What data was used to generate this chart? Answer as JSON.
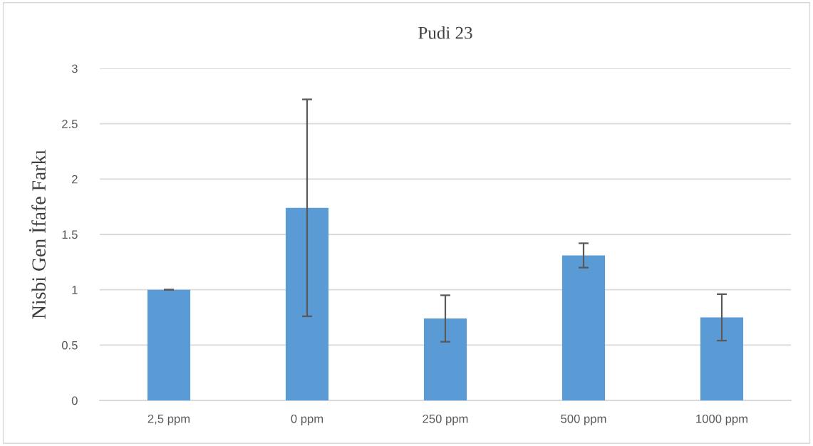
{
  "chart_data": {
    "type": "bar",
    "title": "Pudi 23",
    "ylabel": "Nisbi Gen İfafe Farkı",
    "categories": [
      "2,5 ppm",
      "0 ppm",
      "250 ppm",
      "500 ppm",
      "1000 ppm"
    ],
    "values": [
      1.0,
      1.74,
      0.74,
      1.31,
      0.75
    ],
    "errors": [
      0,
      0.98,
      0.21,
      0.11,
      0.21
    ],
    "color": "#5b9bd5",
    "ylim": [
      0,
      3
    ],
    "yticks": [
      0,
      {
        "value": 0.5,
        "label": "0.5"
      },
      1,
      {
        "value": 1.5,
        "label": "1.5"
      },
      2,
      {
        "value": 2.5,
        "label": "2.5"
      },
      3
    ],
    "grid": "y",
    "legend": false
  }
}
